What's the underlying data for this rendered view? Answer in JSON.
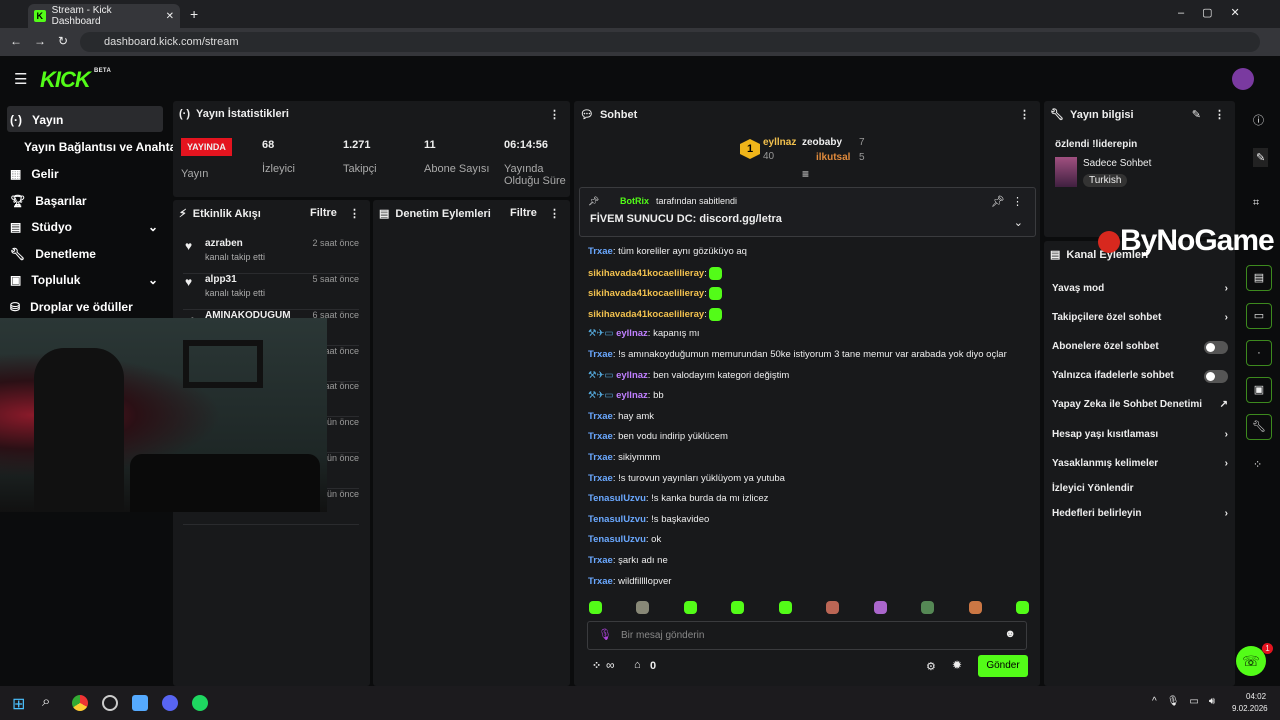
{
  "browser": {
    "tab_title": "Stream - Kick Dashboard",
    "url": "dashboard.kick.com/stream"
  },
  "brand": {
    "logo": "KICK",
    "beta": "BETA",
    "accent": "#53fc18"
  },
  "sidebar": {
    "items": [
      {
        "label": "Yayın",
        "icon": "broadcast-icon"
      },
      {
        "label": "Yayın Bağlantısı ve Anahtarı"
      },
      {
        "label": "Gelir",
        "icon": "chart-icon"
      },
      {
        "label": "Başarılar",
        "icon": "trophy-icon"
      },
      {
        "label": "Stüdyo",
        "icon": "studio-icon"
      },
      {
        "label": "Denetleme",
        "icon": "wrench-icon"
      },
      {
        "label": "Topluluk",
        "icon": "community-icon"
      },
      {
        "label": "Droplar ve ödüller",
        "icon": "gift-icon"
      }
    ]
  },
  "stats": {
    "title": "Yayın İstatistikleri",
    "live_badge": "YAYINDA",
    "live_label": "Yayın",
    "items": [
      {
        "value": "68",
        "label": "İzleyici"
      },
      {
        "value": "1.271",
        "label": "Takipçi"
      },
      {
        "value": "11",
        "label": "Abone Sayısı"
      },
      {
        "value": "06:14:56",
        "label": "Yayında Olduğu Süre"
      }
    ]
  },
  "activity": {
    "title": "Etkinlik Akışı",
    "filter": "Filtre",
    "events": [
      {
        "user": "azraben",
        "action": "kanalı takip etti",
        "time": "2 saat önce"
      },
      {
        "user": "alpp31",
        "action": "kanalı takip etti",
        "time": "5 saat önce"
      },
      {
        "user": "AMINAKODUGUM",
        "time": "6 saat önce"
      },
      {
        "time": "saat önce"
      },
      {
        "time": "saat önce"
      },
      {
        "time": "gün önce"
      },
      {
        "time": "gün önce"
      },
      {
        "time": "gün önce"
      }
    ]
  },
  "moderation": {
    "title": "Denetim Eylemleri",
    "filter": "Filtre"
  },
  "chat": {
    "title": "Sohbet",
    "leaders": [
      {
        "rank": "1",
        "name": "eyllnaz",
        "count": "40"
      },
      {
        "rank": "2",
        "name": "zeobaby",
        "count": "7"
      },
      {
        "rank": "3",
        "name": "ilkutsal",
        "count": "5"
      }
    ],
    "pinned": {
      "by": "BotRix",
      "by_suffix": "tarafından sabitlendi",
      "text": "FİVEM SUNUCU DC: discord.gg/letra"
    },
    "messages": [
      {
        "user": "Trxae",
        "text": "tüm koreliler aynı gözüküyo aq",
        "c": "b"
      },
      {
        "user": "sikihavada41kocaelilieray",
        "text": "",
        "c": "o",
        "emote": true
      },
      {
        "user": "sikihavada41kocaelilieray",
        "text": "",
        "c": "o",
        "emote": true
      },
      {
        "user": "sikihavada41kocaelilieray",
        "text": "",
        "c": "o",
        "emote": true
      },
      {
        "user": "eyllnaz",
        "text": "kapanış mı",
        "c": "p"
      },
      {
        "user": "Trxae",
        "text": "!s amınakoyduğumun memurundan 50ke istiyorum 3 tane memur var arabada yok diyo oçlar",
        "c": "b"
      },
      {
        "user": "eyllnaz",
        "text": "ben valodayım kategori değiştim",
        "c": "p"
      },
      {
        "user": "eyllnaz",
        "text": "bb",
        "c": "p"
      },
      {
        "user": "Trxae",
        "text": "hay amk",
        "c": "b"
      },
      {
        "user": "Trxae",
        "text": "ben vodu indirip yüklücem",
        "c": "b"
      },
      {
        "user": "Trxae",
        "text": "sikiymmm",
        "c": "b"
      },
      {
        "user": "Trxae",
        "text": "!s turovun yayınları yüklüyom ya yutuba",
        "c": "b"
      },
      {
        "user": "TenasulUzvu",
        "text": "!s kanka burda da mı izlicez",
        "c": "b"
      },
      {
        "user": "TenasulUzvu",
        "text": "!s başkavideo",
        "c": "b"
      },
      {
        "user": "TenasulUzvu",
        "text": "ok",
        "c": "b"
      },
      {
        "user": "Trxae",
        "text": "şarkı adı ne",
        "c": "b"
      },
      {
        "user": "Trxae",
        "text": "wildfillllopver",
        "c": "b"
      }
    ],
    "placeholder": "Bir mesaj gönderin",
    "points": "∞",
    "store_count": "0",
    "send": "Gönder"
  },
  "info": {
    "title": "Yayın bilgisi",
    "stream_title": "özlendi !liderepin",
    "category": "Sadece Sohbet",
    "tag": "Turkish"
  },
  "channel_actions": {
    "title": "Kanal Eylemleri",
    "items": [
      {
        "label": "Yavaş mod",
        "type": "chevron"
      },
      {
        "label": "Takipçilere özel sohbet",
        "type": "chevron"
      },
      {
        "label": "Abonelere özel sohbet",
        "type": "toggle",
        "on": false
      },
      {
        "label": "Yalnızca ifadelerle sohbet",
        "type": "toggle",
        "on": false
      },
      {
        "label": "Yapay Zeka ile Sohbet Denetimi",
        "type": "external"
      },
      {
        "label": "Hesap yaşı kısıtlaması",
        "type": "chevron"
      },
      {
        "label": "Yasaklanmış kelimeler",
        "type": "chevron"
      },
      {
        "label": "İzleyici Yönlendir",
        "type": "none"
      },
      {
        "label": "Hedefleri belirleyin",
        "type": "chevron"
      }
    ]
  },
  "watermark": "ByNoGame",
  "help_badge": "1",
  "taskbar": {
    "time": "04:02",
    "date": "9.02.2026"
  }
}
